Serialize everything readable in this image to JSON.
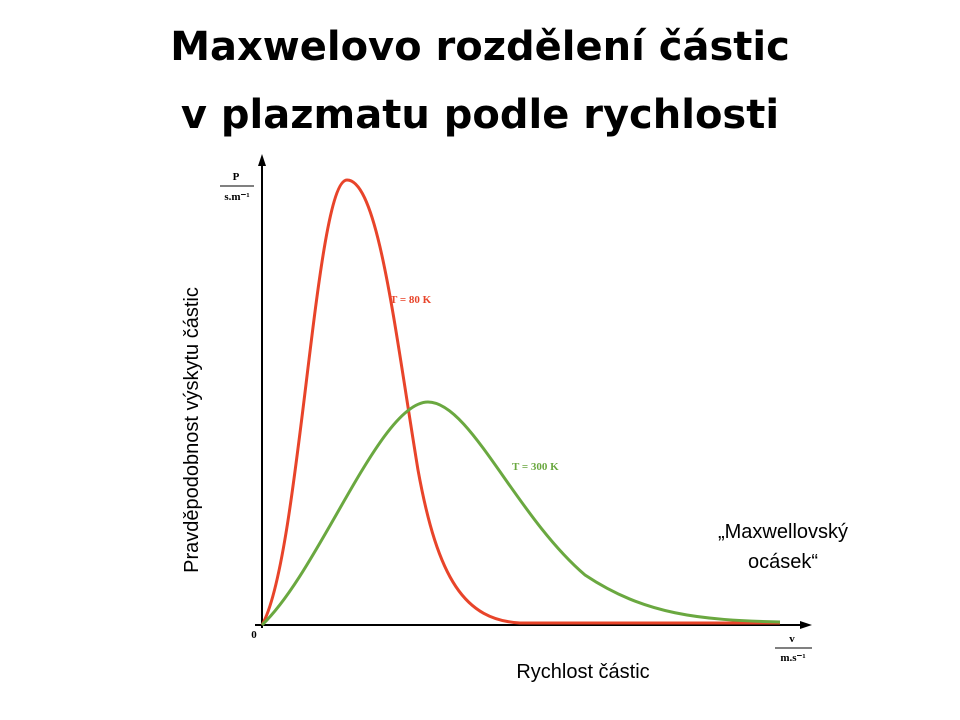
{
  "slide": {
    "title": [
      "Maxwelovo rozdělení částic",
      "v plazmatu podle rychlosti"
    ],
    "figure": {
      "y_axis_symbol": "P",
      "y_axis_unit": "s.m⁻¹",
      "x_axis_symbol": "v",
      "x_axis_unit": "m.s⁻¹",
      "origin": "0",
      "curves": [
        {
          "label": "T = 80 K"
        },
        {
          "label": "T = 300 K"
        }
      ]
    },
    "y_label": "Pravděpodobnost  výskytu částic",
    "x_label": "Rychlost částic",
    "annotation": [
      "„Maxwellovský",
      "ocásek“"
    ]
  }
}
